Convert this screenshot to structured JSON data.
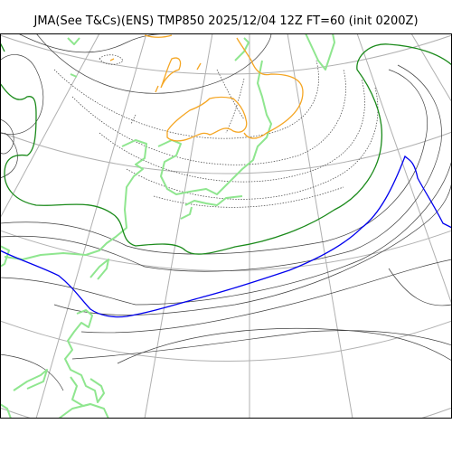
{
  "header": {
    "title": "JMA(See T&Cs)(ENS) TMP850 2025/12/04 12Z FT=60 (init 0200Z)"
  },
  "map": {
    "colors": {
      "graticule": "#b0b0b0",
      "isotherm": "#404040",
      "coastline": "#8fe68f",
      "contour_orange": "#f5a623",
      "contour_green": "#1a8a1a",
      "contour_blue": "#0000ee",
      "frame": "#000000"
    },
    "layers": [
      "graticule",
      "isotherms",
      "coastline",
      "highlighted-contours"
    ]
  }
}
